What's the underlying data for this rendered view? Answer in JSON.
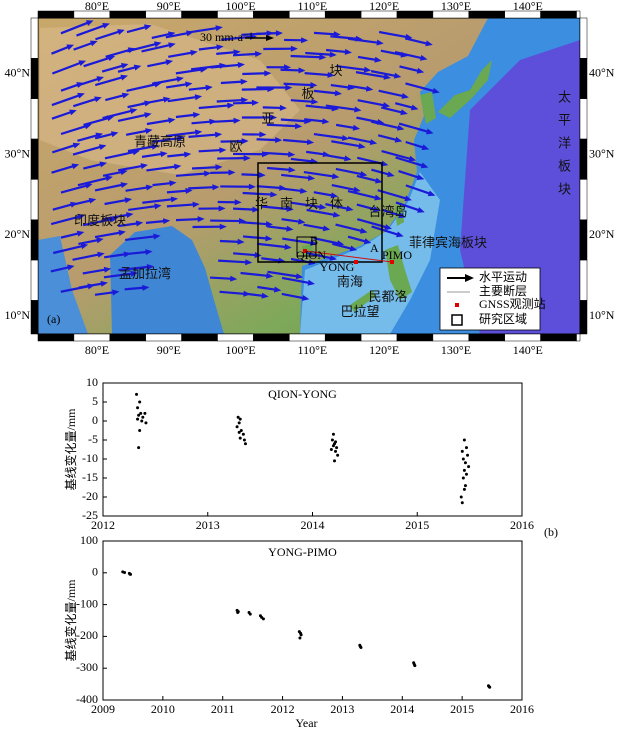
{
  "map": {
    "lon_ticks": [
      "80°E",
      "90°E",
      "100°E",
      "110°E",
      "120°E",
      "130°E",
      "140°E"
    ],
    "lat_ticks": [
      "10°N",
      "20°N",
      "30°N",
      "40°N"
    ],
    "panel_label": "(a)",
    "scale_label": "30 mm·a⁻¹",
    "regions": [
      "青藏高原",
      "印度板块",
      "孟加拉湾",
      "华南块体",
      "菲律宾海板块",
      "南海",
      "台湾岛",
      "民都洛",
      "巴拉望"
    ],
    "eurasia_plate": [
      "欧",
      "亚",
      "板",
      "块"
    ],
    "pacific_plate": "太平洋板块",
    "points": [
      "A",
      "B",
      "QION",
      "YONG",
      "PIMO"
    ],
    "legend": [
      "水平运动",
      "主要断层",
      "GNSS观测站",
      "研究区域"
    ]
  },
  "chart_data": [
    {
      "type": "scatter",
      "title": "QION-YONG",
      "ylabel": "基线变化量/mm",
      "panel_label": "(b)",
      "color": "#000000",
      "x": [
        2012.32,
        2012.35,
        2012.33,
        2012.36,
        2012.4,
        2012.34,
        2012.38,
        2012.33,
        2012.37,
        2012.41,
        2012.35,
        2012.34,
        2013.29,
        2013.31,
        2013.3,
        2013.28,
        2013.32,
        2013.3,
        2013.34,
        2013.31,
        2013.35,
        2013.36,
        2014.2,
        2014.19,
        2014.22,
        2014.21,
        2014.2,
        2014.23,
        2014.18,
        2014.22,
        2014.24,
        2014.21,
        2015.45,
        2015.47,
        2015.43,
        2015.48,
        2015.44,
        2015.46,
        2015.49,
        2015.45,
        2015.47,
        2015.44,
        2015.46,
        2015.45,
        2015.42,
        2015.43
      ],
      "values": [
        7,
        5,
        3.5,
        2,
        2,
        1.5,
        1,
        0.5,
        0,
        -0.5,
        -2.5,
        -7,
        1,
        0.5,
        -0.5,
        -1.5,
        -2.5,
        -3,
        -3.5,
        -4.5,
        -5,
        -6,
        -3.5,
        -5,
        -5.5,
        -6,
        -6.5,
        -7,
        -7.5,
        -8,
        -9,
        -10.5,
        -5,
        -7,
        -8,
        -9,
        -10,
        -11,
        -12,
        -13,
        -14,
        -15,
        -17,
        -18,
        -20,
        -21.5
      ],
      "xlim": [
        2012,
        2016
      ],
      "xticks": [
        2012,
        2013,
        2014,
        2015,
        2016
      ],
      "ylim": [
        -25,
        10
      ],
      "yticks": [
        -25,
        -20,
        -15,
        -10,
        -5,
        0,
        5,
        10
      ]
    },
    {
      "type": "scatter",
      "title": "YONG-PIMO",
      "ylabel": "基线变化量/mm",
      "xlabel": "Year",
      "color": "#000000",
      "x": [
        2009.33,
        2009.36,
        2009.44,
        2009.46,
        2009.45,
        2011.24,
        2011.26,
        2011.25,
        2011.44,
        2011.46,
        2011.63,
        2011.65,
        2011.68,
        2012.28,
        2012.3,
        2012.31,
        2012.29,
        2013.29,
        2013.3,
        2013.31,
        2014.19,
        2014.2,
        2014.21,
        2015.44,
        2015.45,
        2015.46
      ],
      "values": [
        3,
        1,
        -2,
        -5,
        -4,
        -118,
        -122,
        -125,
        -125,
        -130,
        -135,
        -140,
        -145,
        -185,
        -190,
        -195,
        -205,
        -228,
        -232,
        -235,
        -283,
        -288,
        -292,
        -355,
        -358,
        -360
      ],
      "xlim": [
        2009,
        2016
      ],
      "xticks": [
        2009,
        2010,
        2011,
        2012,
        2013,
        2014,
        2015,
        2016
      ],
      "ylim": [
        -400,
        100
      ],
      "yticks": [
        -400,
        -300,
        -200,
        -100,
        0,
        100
      ]
    }
  ]
}
